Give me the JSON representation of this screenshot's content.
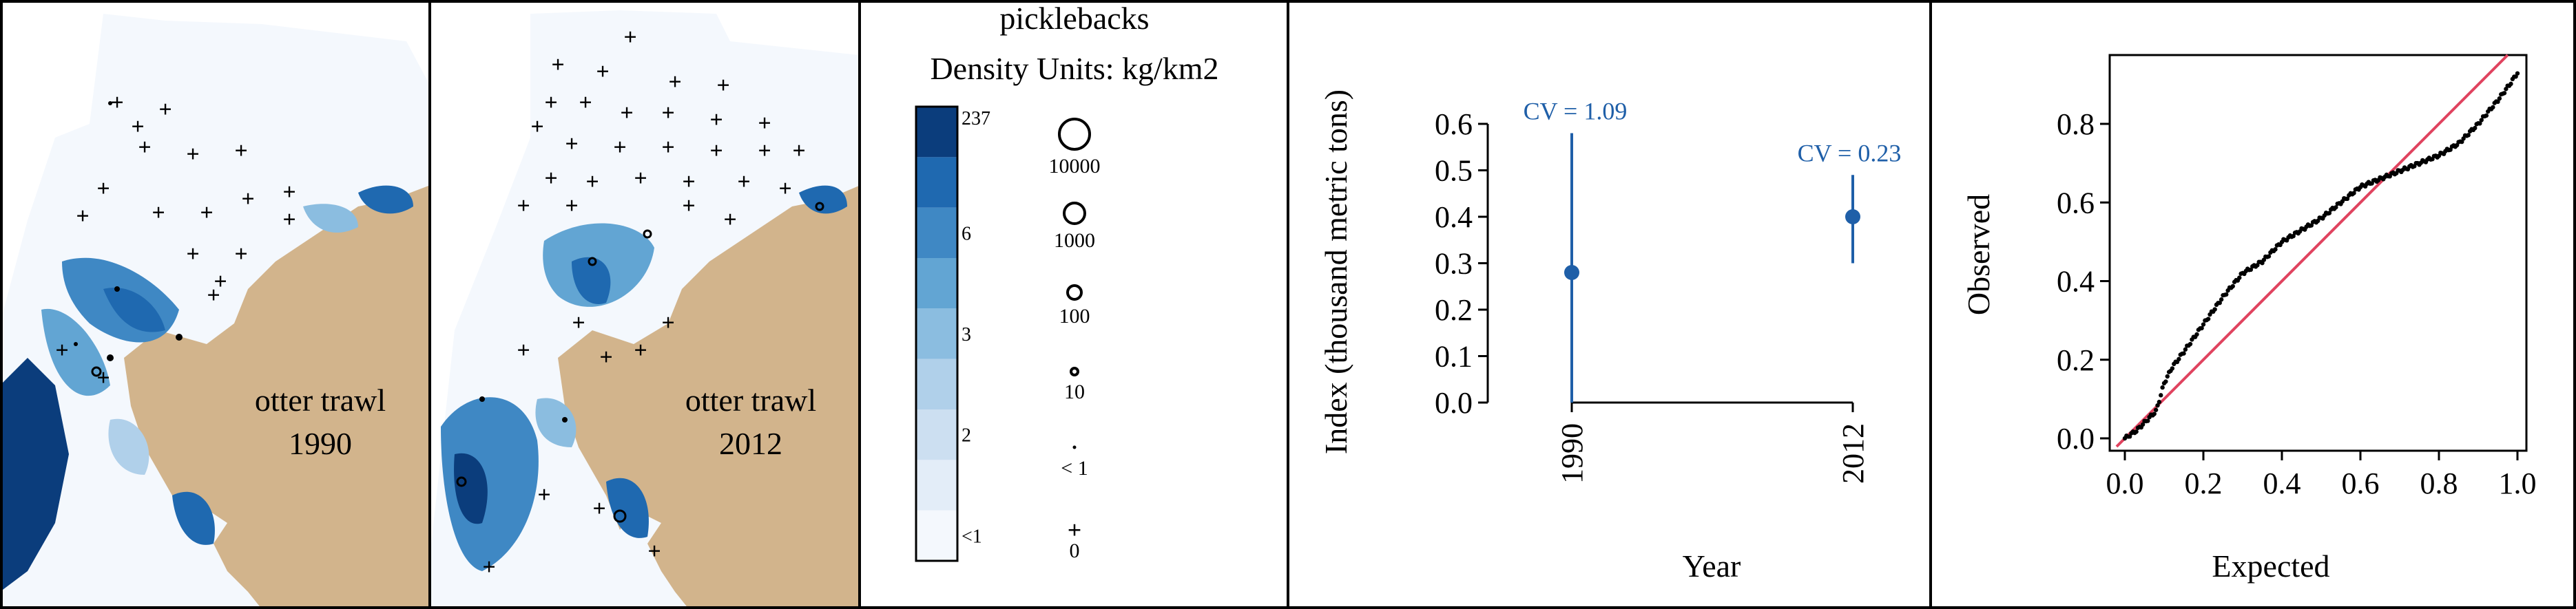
{
  "map_panels": [
    {
      "label_line1": "otter trawl",
      "label_line2": "1990"
    },
    {
      "label_line1": "otter trawl",
      "label_line2": "2012"
    }
  ],
  "legend": {
    "species": "picklebacks",
    "units": "Density Units: kg/km2",
    "color_bins": [
      {
        "label": "<1",
        "color": "#f4f8fd"
      },
      {
        "label": "",
        "color": "#e3edf8"
      },
      {
        "label": "2",
        "color": "#ccdff1"
      },
      {
        "label": "",
        "color": "#b0d0ea"
      },
      {
        "label": "3",
        "color": "#8bbde0"
      },
      {
        "label": "",
        "color": "#62a5d3"
      },
      {
        "label": "6",
        "color": "#3f88c4"
      },
      {
        "label": "",
        "color": "#1f69b0"
      },
      {
        "label": "237",
        "color": "#0b3d7c"
      }
    ],
    "size_bins": [
      {
        "label": "10000",
        "symbol": "circle",
        "size": 5
      },
      {
        "label": "1000",
        "symbol": "circle",
        "size": 4
      },
      {
        "label": "100",
        "symbol": "circle",
        "size": 3
      },
      {
        "label": "10",
        "symbol": "circle",
        "size": 2
      },
      {
        "label": "< 1",
        "symbol": "dot",
        "size": 1
      },
      {
        "label": "0",
        "symbol": "plus",
        "size": 0
      }
    ]
  },
  "colors": {
    "land": "#d2b48c",
    "water": "#f4f8fd",
    "index_series": "#1f5fa8",
    "qq_points": "#000000",
    "qq_reference": "#e0435f"
  },
  "chart_data": [
    {
      "type": "scatter",
      "title": "",
      "xlabel": "Year",
      "ylabel": "Index (thousand metric tons)",
      "categories": [
        "1990",
        "2012"
      ],
      "ylim": [
        0,
        0.6
      ],
      "yticks": [
        "0.0",
        "0.1",
        "0.2",
        "0.3",
        "0.4",
        "0.5",
        "0.6"
      ],
      "series": [
        {
          "values": [
            0.28,
            0.4
          ],
          "lower": [
            0.0,
            0.3
          ],
          "upper": [
            0.58,
            0.49
          ],
          "annotations": [
            "CV = 1.09",
            "CV = 0.23"
          ]
        }
      ]
    },
    {
      "type": "scatter",
      "title": "",
      "xlabel": "Expected",
      "ylabel": "Observed",
      "xlim": [
        0,
        1
      ],
      "ylim": [
        0,
        0.95
      ],
      "xticks": [
        "0.0",
        "0.2",
        "0.4",
        "0.6",
        "0.8",
        "1.0"
      ],
      "yticks": [
        "0.0",
        "0.2",
        "0.4",
        "0.6",
        "0.8"
      ],
      "reference_line": {
        "x": [
          0,
          1
        ],
        "y": [
          0,
          1
        ]
      },
      "observed_curve": {
        "x": [
          0.0,
          0.03,
          0.05,
          0.08,
          0.1,
          0.12,
          0.15,
          0.2,
          0.25,
          0.3,
          0.35,
          0.4,
          0.45,
          0.5,
          0.55,
          0.6,
          0.65,
          0.7,
          0.75,
          0.8,
          0.85,
          0.9,
          0.95,
          0.98,
          1.0
        ],
        "y": [
          0.0,
          0.02,
          0.04,
          0.07,
          0.14,
          0.18,
          0.22,
          0.29,
          0.36,
          0.42,
          0.45,
          0.5,
          0.53,
          0.56,
          0.6,
          0.64,
          0.66,
          0.68,
          0.7,
          0.72,
          0.75,
          0.8,
          0.86,
          0.9,
          0.93
        ]
      }
    }
  ]
}
